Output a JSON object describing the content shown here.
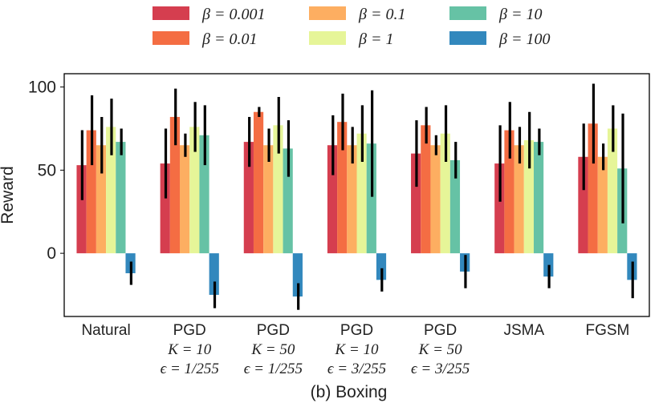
{
  "chart_data": {
    "type": "bar",
    "title": "",
    "caption": "(b) Boxing",
    "ylabel": "Reward",
    "xlabel": "",
    "ylim": [
      -38,
      108
    ],
    "yticks": [
      0,
      50,
      100
    ],
    "grid": false,
    "legend_position": "top",
    "categories": [
      {
        "line1": "Natural",
        "line2": "",
        "line3": ""
      },
      {
        "line1": "PGD",
        "line2": "K = 10",
        "line3": "ϵ = 1/255"
      },
      {
        "line1": "PGD",
        "line2": "K = 50",
        "line3": "ϵ = 1/255"
      },
      {
        "line1": "PGD",
        "line2": "K = 10",
        "line3": "ϵ = 3/255"
      },
      {
        "line1": "PGD",
        "line2": "K = 50",
        "line3": "ϵ = 3/255"
      },
      {
        "line1": "JSMA",
        "line2": "",
        "line3": ""
      },
      {
        "line1": "FGSM",
        "line2": "",
        "line3": ""
      }
    ],
    "series": [
      {
        "name": "β = 0.001",
        "color": "#d53e4f",
        "values": [
          53,
          54,
          67,
          65,
          60,
          54,
          58
        ],
        "errors": [
          21,
          21,
          15,
          18,
          20,
          23,
          20
        ]
      },
      {
        "name": "β = 0.01",
        "color": "#f46d43",
        "values": [
          74,
          82,
          85,
          79,
          77,
          74,
          78
        ],
        "errors": [
          21,
          17,
          3,
          17,
          11,
          17,
          24
        ]
      },
      {
        "name": "β = 0.1",
        "color": "#fdae61",
        "values": [
          65,
          65,
          65,
          65,
          65,
          65,
          58
        ],
        "errors": [
          17,
          7,
          10,
          11,
          6,
          11,
          8
        ]
      },
      {
        "name": "β = 1",
        "color": "#e6f598",
        "values": [
          76,
          76,
          77,
          72,
          72,
          68,
          75
        ],
        "errors": [
          17,
          15,
          17,
          17,
          17,
          17,
          14
        ]
      },
      {
        "name": "β = 10",
        "color": "#66c2a5",
        "values": [
          67,
          71,
          63,
          66,
          56,
          67,
          51
        ],
        "errors": [
          8,
          18,
          17,
          32,
          11,
          8,
          33
        ]
      },
      {
        "name": "β = 100",
        "color": "#3288bd",
        "values": [
          -12,
          -25,
          -26,
          -16,
          -11,
          -14,
          -16
        ],
        "errors": [
          7,
          8,
          8,
          7,
          10,
          7,
          11
        ]
      }
    ]
  }
}
